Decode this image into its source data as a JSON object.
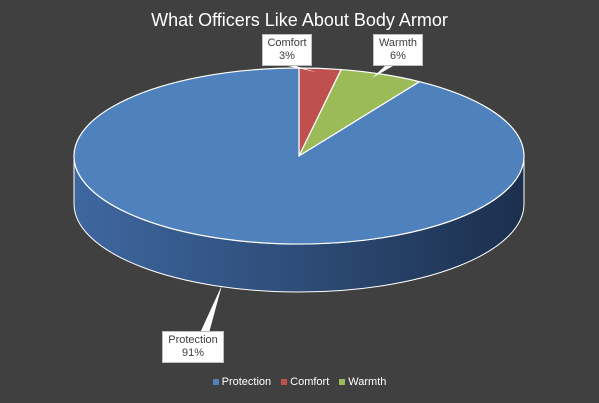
{
  "chart_data": {
    "type": "pie",
    "title": "What Officers Like About Body Armor",
    "slices": [
      {
        "label": "Protection",
        "value": 91,
        "value_label": "91%",
        "color": "#4F81BD"
      },
      {
        "label": "Comfort",
        "value": 3,
        "value_label": "3%",
        "color": "#C0504D"
      },
      {
        "label": "Warmth",
        "value": 6,
        "value_label": "6%",
        "color": "#9BBB59"
      }
    ],
    "legend_position": "bottom",
    "style": "3d"
  }
}
